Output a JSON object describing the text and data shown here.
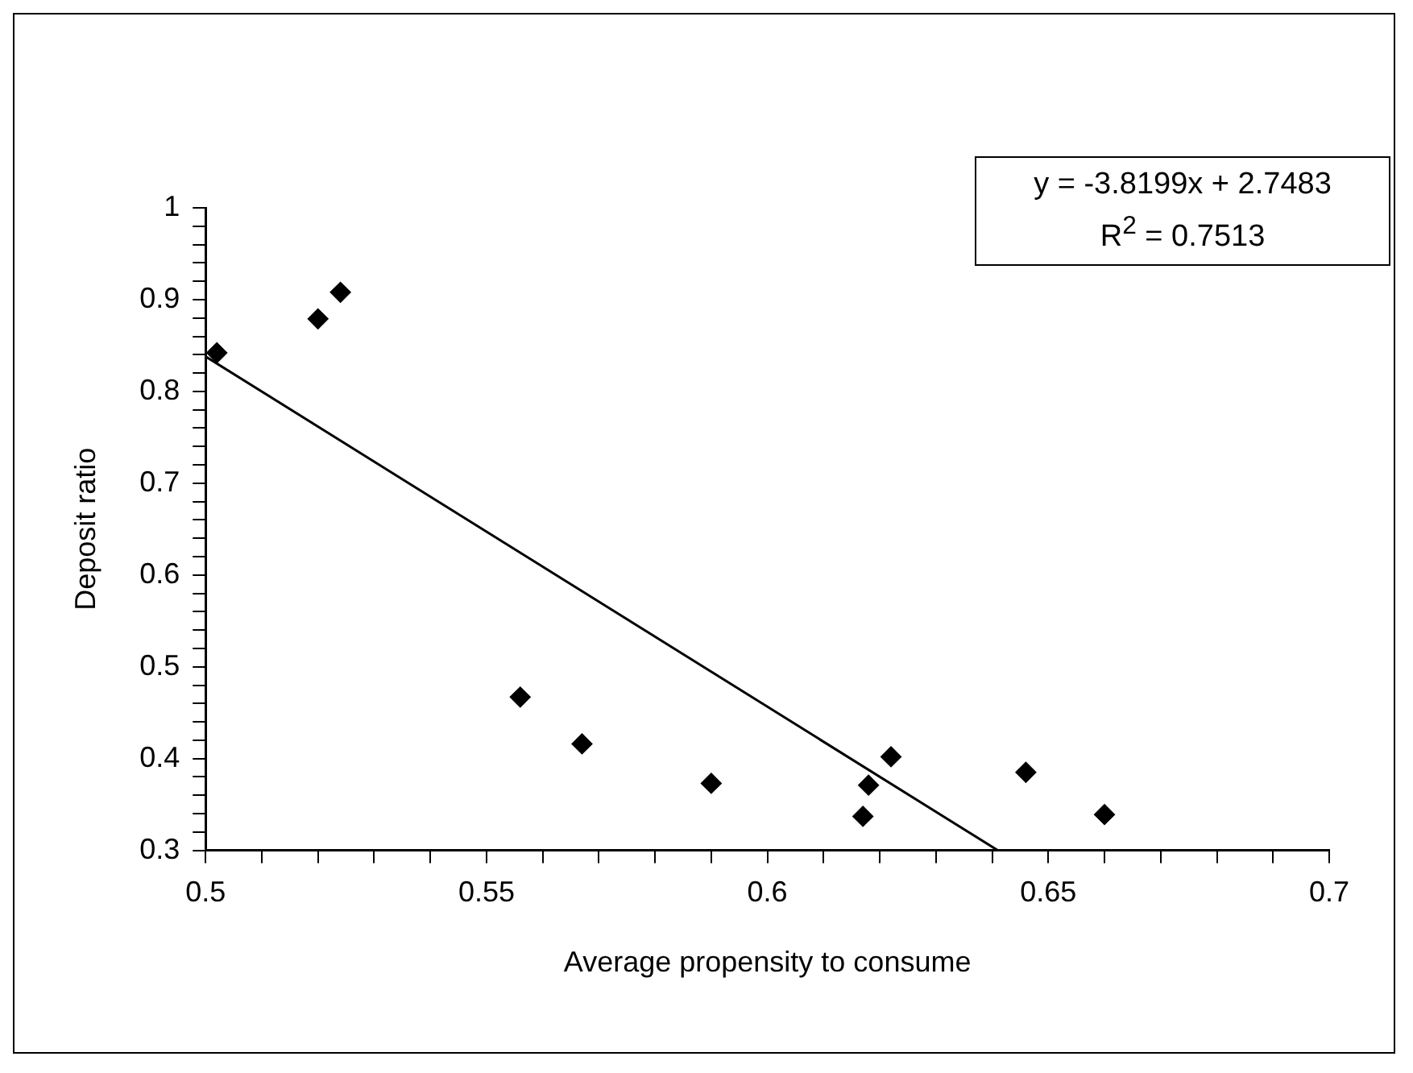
{
  "chart_data": {
    "type": "scatter",
    "xlabel": "Average propensity to consume",
    "ylabel": "Deposit ratio",
    "annotations": [
      "y = -3.8199x + 2.7483",
      "R$^{2}$ = 0.7513"
    ],
    "series": [
      {
        "color": "#000000",
        "marker": "diamond",
        "x": [
          0.502,
          0.52,
          0.524,
          0.556,
          0.567,
          0.59,
          0.617,
          0.618,
          0.622,
          0.646,
          0.66
        ],
        "values": [
          0.842,
          0.879,
          0.908,
          0.467,
          0.416,
          0.373,
          0.337,
          0.371,
          0.402,
          0.385,
          0.339
        ]
      },
      {
        "type": "line",
        "color": "#000000",
        "marker": "none",
        "line_style": "solid",
        "x": [
          0.5,
          0.641
        ],
        "values": [
          0.838,
          0.3
        ]
      }
    ],
    "xlim": [
      0.5,
      0.7
    ],
    "xticks": [
      0.5,
      {
        "value": 0.51,
        "label": null
      },
      {
        "value": 0.52,
        "label": null
      },
      {
        "value": 0.53,
        "label": null
      },
      {
        "value": 0.54,
        "label": null
      },
      0.55,
      {
        "value": 0.56,
        "label": null
      },
      {
        "value": 0.57,
        "label": null
      },
      {
        "value": 0.58,
        "label": null
      },
      {
        "value": 0.59,
        "label": null
      },
      0.6,
      {
        "value": 0.61,
        "label": null
      },
      {
        "value": 0.62,
        "label": null
      },
      {
        "value": 0.63,
        "label": null
      },
      {
        "value": 0.64,
        "label": null
      },
      0.65,
      {
        "value": 0.66,
        "label": null
      },
      {
        "value": 0.67,
        "label": null
      },
      {
        "value": 0.68,
        "label": null
      },
      {
        "value": 0.69,
        "label": null
      },
      0.7
    ],
    "ylim": [
      0.3,
      1
    ],
    "yticks": [
      0.3,
      {
        "value": 0.32,
        "label": null
      },
      {
        "value": 0.34,
        "label": null
      },
      {
        "value": 0.36,
        "label": null
      },
      {
        "value": 0.38,
        "label": null
      },
      0.4,
      {
        "value": 0.42,
        "label": null
      },
      {
        "value": 0.44,
        "label": null
      },
      {
        "value": 0.46,
        "label": null
      },
      {
        "value": 0.48,
        "label": null
      },
      0.5,
      {
        "value": 0.52,
        "label": null
      },
      {
        "value": 0.54,
        "label": null
      },
      {
        "value": 0.56,
        "label": null
      },
      {
        "value": 0.58,
        "label": null
      },
      0.6,
      {
        "value": 0.62,
        "label": null
      },
      {
        "value": 0.64,
        "label": null
      },
      {
        "value": 0.66,
        "label": null
      },
      {
        "value": 0.68,
        "label": null
      },
      0.7,
      {
        "value": 0.72,
        "label": null
      },
      {
        "value": 0.74,
        "label": null
      },
      {
        "value": 0.76,
        "label": null
      },
      {
        "value": 0.78,
        "label": null
      },
      0.8,
      {
        "value": 0.82,
        "label": null
      },
      {
        "value": 0.84,
        "label": null
      },
      {
        "value": 0.86,
        "label": null
      },
      {
        "value": 0.88,
        "label": null
      },
      0.9,
      {
        "value": 0.92,
        "label": null
      },
      {
        "value": 0.94,
        "label": null
      },
      {
        "value": 0.96,
        "label": null
      },
      {
        "value": 0.98,
        "label": null
      },
      1
    ],
    "grid": false,
    "legend": false
  }
}
